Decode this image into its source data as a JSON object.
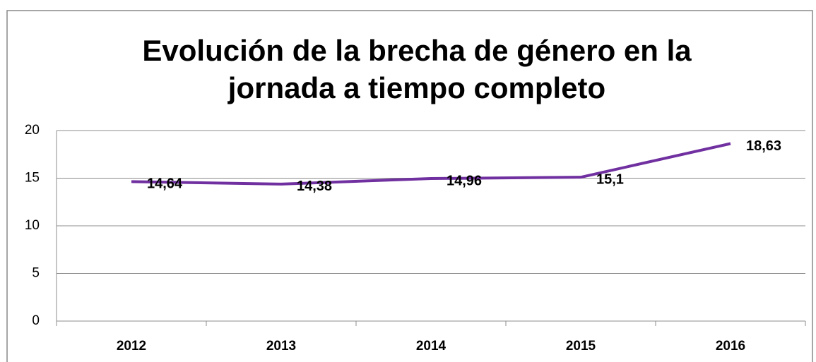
{
  "chart_data": {
    "type": "line",
    "title": [
      "Evolución de la brecha de género en la",
      "jornada a tiempo completo"
    ],
    "categories": [
      "2012",
      "2013",
      "2014",
      "2015",
      "2016"
    ],
    "series": [
      {
        "name": null,
        "color": "#7030a0",
        "values": [
          14.64,
          14.38,
          14.96,
          15.1,
          18.63
        ],
        "value_labels": [
          "14,64",
          "14,38",
          "14,96",
          "15,1",
          "18,63"
        ]
      }
    ],
    "ylim": [
      0,
      20
    ],
    "yticks": [
      0,
      5,
      10,
      15,
      20
    ],
    "grid": true
  }
}
